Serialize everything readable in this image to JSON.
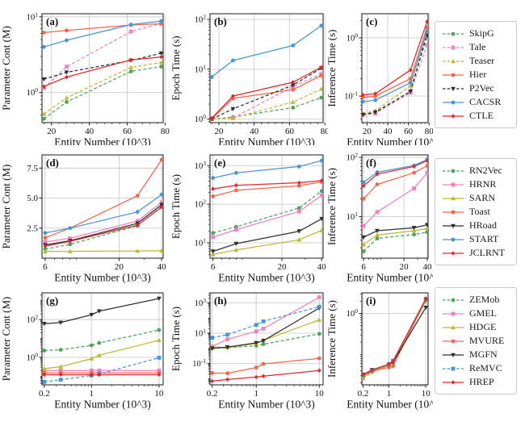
{
  "figure_title": "Scalability comparison figure (9 panels)",
  "shared_xlabel": "Entity Number (10^3)",
  "colors": {
    "green": "#4ca35f",
    "pink": "#f580c1",
    "olive": "#b9ba35",
    "orange": "#f4654e",
    "black": "#2f2f2f",
    "blue": "#4a94d8",
    "red": "#e0262c",
    "grid": "#cccccc",
    "spine": "#1a1a1a"
  },
  "legends": [
    {
      "name": "legend-group-1",
      "items": [
        {
          "label": "SkipG",
          "color": "green",
          "dash": true,
          "marker": "circle"
        },
        {
          "label": "Tale",
          "color": "pink",
          "dash": true,
          "marker": "square"
        },
        {
          "label": "Teaser",
          "color": "olive",
          "dash": true,
          "marker": "tri-up"
        },
        {
          "label": "Hier",
          "color": "orange",
          "dash": false,
          "marker": "circle"
        },
        {
          "label": "P2Vec",
          "color": "black",
          "dash": true,
          "marker": "tri-down"
        },
        {
          "label": "CACSR",
          "color": "blue",
          "dash": false,
          "marker": "circle"
        },
        {
          "label": "CTLE",
          "color": "red",
          "dash": false,
          "marker": "diamond"
        }
      ]
    },
    {
      "name": "legend-group-2",
      "items": [
        {
          "label": "RN2Vec",
          "color": "green",
          "dash": true,
          "marker": "circle"
        },
        {
          "label": "HRNR",
          "color": "pink",
          "dash": false,
          "marker": "square"
        },
        {
          "label": "SARN",
          "color": "olive",
          "dash": false,
          "marker": "tri-up"
        },
        {
          "label": "Toast",
          "color": "orange",
          "dash": false,
          "marker": "circle"
        },
        {
          "label": "HRoad",
          "color": "black",
          "dash": false,
          "marker": "tri-down"
        },
        {
          "label": "START",
          "color": "blue",
          "dash": false,
          "marker": "circle"
        },
        {
          "label": "JCLRNT",
          "color": "red",
          "dash": false,
          "marker": "diamond"
        }
      ]
    },
    {
      "name": "legend-group-3",
      "items": [
        {
          "label": "ZEMob",
          "color": "green",
          "dash": true,
          "marker": "circle"
        },
        {
          "label": "GMEL",
          "color": "pink",
          "dash": false,
          "marker": "square"
        },
        {
          "label": "HDGE",
          "color": "olive",
          "dash": false,
          "marker": "tri-up"
        },
        {
          "label": "MVURE",
          "color": "orange",
          "dash": false,
          "marker": "circle"
        },
        {
          "label": "MGFN",
          "color": "black",
          "dash": false,
          "marker": "tri-down"
        },
        {
          "label": "ReMVC",
          "color": "blue",
          "dash": true,
          "marker": "square"
        },
        {
          "label": "HREP",
          "color": "red",
          "dash": false,
          "marker": "diamond"
        }
      ]
    }
  ],
  "chart_data": {
    "type": "line",
    "grid": true,
    "legend_position": "right",
    "xlabel": "Entity Number (10^3)",
    "panels": [
      {
        "id": "a",
        "letter": "(a)",
        "ylabel": "Parameter Cont (M)",
        "xscale": "linear",
        "xlim": [
          15,
          79
        ],
        "xticks": [
          20,
          40,
          60,
          80
        ],
        "yscale": "log",
        "ylim": [
          0.4,
          11
        ],
        "yticks": [
          1,
          10
        ],
        "ytick_style": "pow",
        "legend": 0,
        "x": [
          16,
          28,
          62,
          78
        ],
        "series": [
          {
            "name": "SkipG",
            "values": [
              0.45,
              0.75,
              1.9,
              2.2
            ]
          },
          {
            "name": "Tale",
            "values": [
              1.15,
              2.2,
              6.4,
              8.2
            ]
          },
          {
            "name": "Teaser",
            "values": [
              0.52,
              0.85,
              2.15,
              2.5
            ]
          },
          {
            "name": "Hier",
            "values": [
              6.2,
              6.6,
              7.8,
              8.1
            ]
          },
          {
            "name": "P2Vec",
            "values": [
              1.5,
              1.85,
              2.65,
              3.3
            ]
          },
          {
            "name": "CACSR",
            "values": [
              4.0,
              4.9,
              7.9,
              8.8
            ]
          },
          {
            "name": "CTLE",
            "values": [
              1.2,
              1.6,
              2.7,
              2.95
            ]
          }
        ]
      },
      {
        "id": "b",
        "letter": "(b)",
        "ylabel": "Epoch Time (s)",
        "xscale": "linear",
        "xlim": [
          15,
          79
        ],
        "xticks": [
          20,
          40,
          60,
          80
        ],
        "yscale": "log",
        "ylim": [
          0.85,
          130
        ],
        "yticks": [
          1,
          10,
          100
        ],
        "ytick_style": "pow",
        "legend": 0,
        "x": [
          16,
          28,
          62,
          78
        ],
        "series": [
          {
            "name": "SkipG",
            "values": [
              1.0,
              1.1,
              1.7,
              2.7
            ]
          },
          {
            "name": "Tale",
            "values": [
              1.0,
              1.05,
              4.5,
              8.0
            ]
          },
          {
            "name": "Teaser",
            "values": [
              1.0,
              1.05,
              2.2,
              4.0
            ]
          },
          {
            "name": "Hier",
            "values": [
              1.0,
              2.6,
              3.9,
              7.5
            ]
          },
          {
            "name": "P2Vec",
            "values": [
              1.0,
              1.6,
              4.8,
              10.5
            ]
          },
          {
            "name": "CACSR",
            "values": [
              7.0,
              15,
              30,
              75
            ]
          },
          {
            "name": "CTLE",
            "values": [
              1.05,
              2.9,
              5.5,
              11
            ]
          }
        ]
      },
      {
        "id": "c",
        "letter": "(c)",
        "ylabel": "Inference Time (s)",
        "xscale": "linear",
        "xlim": [
          15,
          79
        ],
        "xticks": [
          20,
          40,
          60,
          80
        ],
        "yscale": "log",
        "ylim": [
          0.035,
          2.6
        ],
        "yticks": [
          0.1,
          1
        ],
        "ytick_style": "pow",
        "legend": 0,
        "x": [
          16,
          28,
          62,
          78
        ],
        "series": [
          {
            "name": "SkipG",
            "values": [
              0.048,
              0.052,
              0.12,
              1.25
            ]
          },
          {
            "name": "Tale",
            "values": [
              0.047,
              0.05,
              0.115,
              0.75
            ]
          },
          {
            "name": "Teaser",
            "values": [
              0.05,
              0.056,
              0.15,
              1.35
            ]
          },
          {
            "name": "Hier",
            "values": [
              0.095,
              0.1,
              0.2,
              1.5
            ]
          },
          {
            "name": "P2Vec",
            "values": [
              0.048,
              0.053,
              0.12,
              1.1
            ]
          },
          {
            "name": "CACSR",
            "values": [
              0.08,
              0.085,
              0.17,
              1.3
            ]
          },
          {
            "name": "CTLE",
            "values": [
              0.105,
              0.11,
              0.28,
              1.9
            ]
          }
        ]
      },
      {
        "id": "d",
        "letter": "(d)",
        "ylabel": "Parameter Cont (M)",
        "xscale": "log",
        "xlim": [
          5.7,
          41
        ],
        "xticks": [
          6,
          20,
          40
        ],
        "yscale": "linear",
        "ylim": [
          0,
          8.6
        ],
        "yticks": [
          2.5,
          5.0,
          7.5
        ],
        "ytick_style": "plain",
        "legend": 1,
        "x": [
          6,
          9,
          27,
          40
        ],
        "series": [
          {
            "name": "RN2Vec",
            "values": [
              0.75,
              1.15,
              2.7,
              4.3
            ]
          },
          {
            "name": "HRNR",
            "values": [
              1.35,
              1.65,
              3.1,
              4.65
            ]
          },
          {
            "name": "SARN",
            "values": [
              0.55,
              0.57,
              0.6,
              0.62
            ]
          },
          {
            "name": "Toast",
            "values": [
              1.7,
              2.5,
              5.2,
              8.2
            ]
          },
          {
            "name": "HRoad",
            "values": [
              1.1,
              1.45,
              2.9,
              4.45
            ]
          },
          {
            "name": "START",
            "values": [
              2.1,
              2.5,
              3.85,
              5.3
            ]
          },
          {
            "name": "JCLRNT",
            "values": [
              1.0,
              1.4,
              2.75,
              4.25
            ]
          }
        ]
      },
      {
        "id": "e",
        "letter": "(e)",
        "ylabel": "Epoch Time (s)",
        "xscale": "log",
        "xlim": [
          5.7,
          41
        ],
        "xticks": [
          6,
          20,
          40
        ],
        "yscale": "log",
        "ylim": [
          4,
          1900
        ],
        "yticks": [
          10,
          100,
          1000
        ],
        "ytick_style": "pow",
        "legend": 1,
        "x": [
          6,
          9,
          27,
          40
        ],
        "series": [
          {
            "name": "RN2Vec",
            "values": [
              18,
              26,
              80,
              220
            ]
          },
          {
            "name": "HRNR",
            "values": [
              14,
              22,
              65,
              170
            ]
          },
          {
            "name": "SARN",
            "values": [
              5,
              6.5,
              12,
              21
            ]
          },
          {
            "name": "Toast",
            "values": [
              160,
              230,
              300,
              380
            ]
          },
          {
            "name": "HRoad",
            "values": [
              6,
              9.5,
              20,
              42
            ]
          },
          {
            "name": "START",
            "values": [
              480,
              650,
              950,
              1350
            ]
          },
          {
            "name": "JCLRNT",
            "values": [
              250,
              310,
              360,
              410
            ]
          }
        ]
      },
      {
        "id": "f",
        "letter": "(f)",
        "ylabel": "Inference Time (s)",
        "xscale": "log",
        "xlim": [
          5.7,
          41
        ],
        "xticks": [
          6,
          20,
          40
        ],
        "yscale": "log",
        "ylim": [
          2,
          110
        ],
        "yticks": [
          10,
          100
        ],
        "ytick_style": "pow",
        "legend": 1,
        "x": [
          6,
          9,
          27,
          40
        ],
        "series": [
          {
            "name": "RN2Vec",
            "values": [
              2.6,
              4.3,
              5.0,
              5.5
            ]
          },
          {
            "name": "HRNR",
            "values": [
              7,
              12,
              30,
              55
            ]
          },
          {
            "name": "SARN",
            "values": [
              3.4,
              4.9,
              5.8,
              6.3
            ]
          },
          {
            "name": "Toast",
            "values": [
              20,
              35,
              55,
              72
            ]
          },
          {
            "name": "HRoad",
            "values": [
              4.5,
              5.8,
              6.5,
              7.3
            ]
          },
          {
            "name": "START",
            "values": [
              38,
              56,
              73,
              92
            ]
          },
          {
            "name": "JCLRNT",
            "values": [
              33,
              52,
              70,
              88
            ]
          }
        ]
      },
      {
        "id": "g",
        "letter": "(g)",
        "ylabel": "Parameter Cont (M)",
        "xscale": "log",
        "xlim": [
          0.185,
          11.5
        ],
        "xticks": [
          0.2,
          1,
          10
        ],
        "yscale": "log",
        "ylim": [
          0.035,
          2600
        ],
        "yticks": [
          1,
          100
        ],
        "ytick_style": "pow",
        "legend": 2,
        "x": [
          0.2,
          0.35,
          1,
          1.3,
          10
        ],
        "series": [
          {
            "name": "ZEMob",
            "values": [
              2.3,
              2.5,
              4.3,
              5.8,
              28
            ]
          },
          {
            "name": "GMEL",
            "values": [
              0.2,
              0.2,
              0.2,
              0.2,
              0.2
            ]
          },
          {
            "name": "HDGE",
            "values": [
              0.25,
              0.32,
              0.85,
              1.3,
              8
            ]
          },
          {
            "name": "MVURE",
            "values": [
              0.15,
              0.15,
              0.15,
              0.15,
              0.15
            ]
          },
          {
            "name": "MGFN",
            "values": [
              60,
              70,
              180,
              280,
              1300
            ]
          },
          {
            "name": "ReMVC",
            "values": [
              0.05,
              0.065,
              0.11,
              0.13,
              0.95
            ]
          },
          {
            "name": "HREP",
            "values": [
              0.12,
              0.12,
              0.12,
              0.12,
              0.12
            ]
          }
        ]
      },
      {
        "id": "h",
        "letter": "(h)",
        "ylabel": "Epoch Time (s)",
        "xscale": "log",
        "xlim": [
          0.185,
          11.5
        ],
        "xticks": [
          0.2,
          1,
          10
        ],
        "yscale": "log",
        "ylim": [
          0.004,
          4500
        ],
        "yticks": [
          0.1,
          10,
          1000
        ],
        "ytick_style": "pow",
        "legend": 2,
        "x": [
          0.2,
          0.35,
          1,
          1.3,
          10
        ],
        "series": [
          {
            "name": "ZEMob",
            "values": [
              1.0,
              1.1,
              1.5,
              1.9,
              9
            ]
          },
          {
            "name": "GMEL",
            "values": [
              1.3,
              4.0,
              13,
              20,
              2300
            ]
          },
          {
            "name": "HDGE",
            "values": [
              1.2,
              1.15,
              2.1,
              3.4,
              75
            ]
          },
          {
            "name": "MVURE",
            "values": [
              0.024,
              0.023,
              0.055,
              0.095,
              0.22
            ]
          },
          {
            "name": "MGFN",
            "values": [
              1.0,
              1.2,
              2.3,
              3.2,
              450
            ]
          },
          {
            "name": "ReMVC",
            "values": [
              5,
              8,
              35,
              60,
              550
            ]
          },
          {
            "name": "HREP",
            "values": [
              0.007,
              0.009,
              0.013,
              0.015,
              0.035
            ]
          }
        ]
      },
      {
        "id": "i",
        "letter": "(i)",
        "ylabel": "Inference Time (s)",
        "xscale": "log",
        "xlim": [
          0.185,
          11.5
        ],
        "xticks": [
          0.2,
          1,
          10
        ],
        "yscale": "log",
        "ylim": [
          0.018,
          3.2
        ],
        "yticks": [
          1
        ],
        "ytick_style": "pow",
        "legend": 2,
        "x": [
          0.2,
          0.35,
          1,
          1.3,
          10
        ],
        "series": [
          {
            "name": "ZEMob",
            "values": [
              0.026,
              0.037,
              0.053,
              0.062,
              2.0
            ]
          },
          {
            "name": "GMEL",
            "values": [
              0.03,
              0.04,
              0.056,
              0.068,
              2.3
            ]
          },
          {
            "name": "HDGE",
            "values": [
              0.027,
              0.038,
              0.054,
              0.063,
              2.1
            ]
          },
          {
            "name": "MVURE",
            "values": [
              0.03,
              0.039,
              0.048,
              0.052,
              2.2
            ]
          },
          {
            "name": "MGFN",
            "values": [
              0.032,
              0.042,
              0.057,
              0.065,
              1.4
            ]
          },
          {
            "name": "ReMVC",
            "values": [
              0.031,
              0.041,
              0.057,
              0.07,
              2.25
            ]
          },
          {
            "name": "HREP",
            "values": [
              0.032,
              0.041,
              0.058,
              0.069,
              2.3
            ]
          }
        ]
      }
    ]
  }
}
